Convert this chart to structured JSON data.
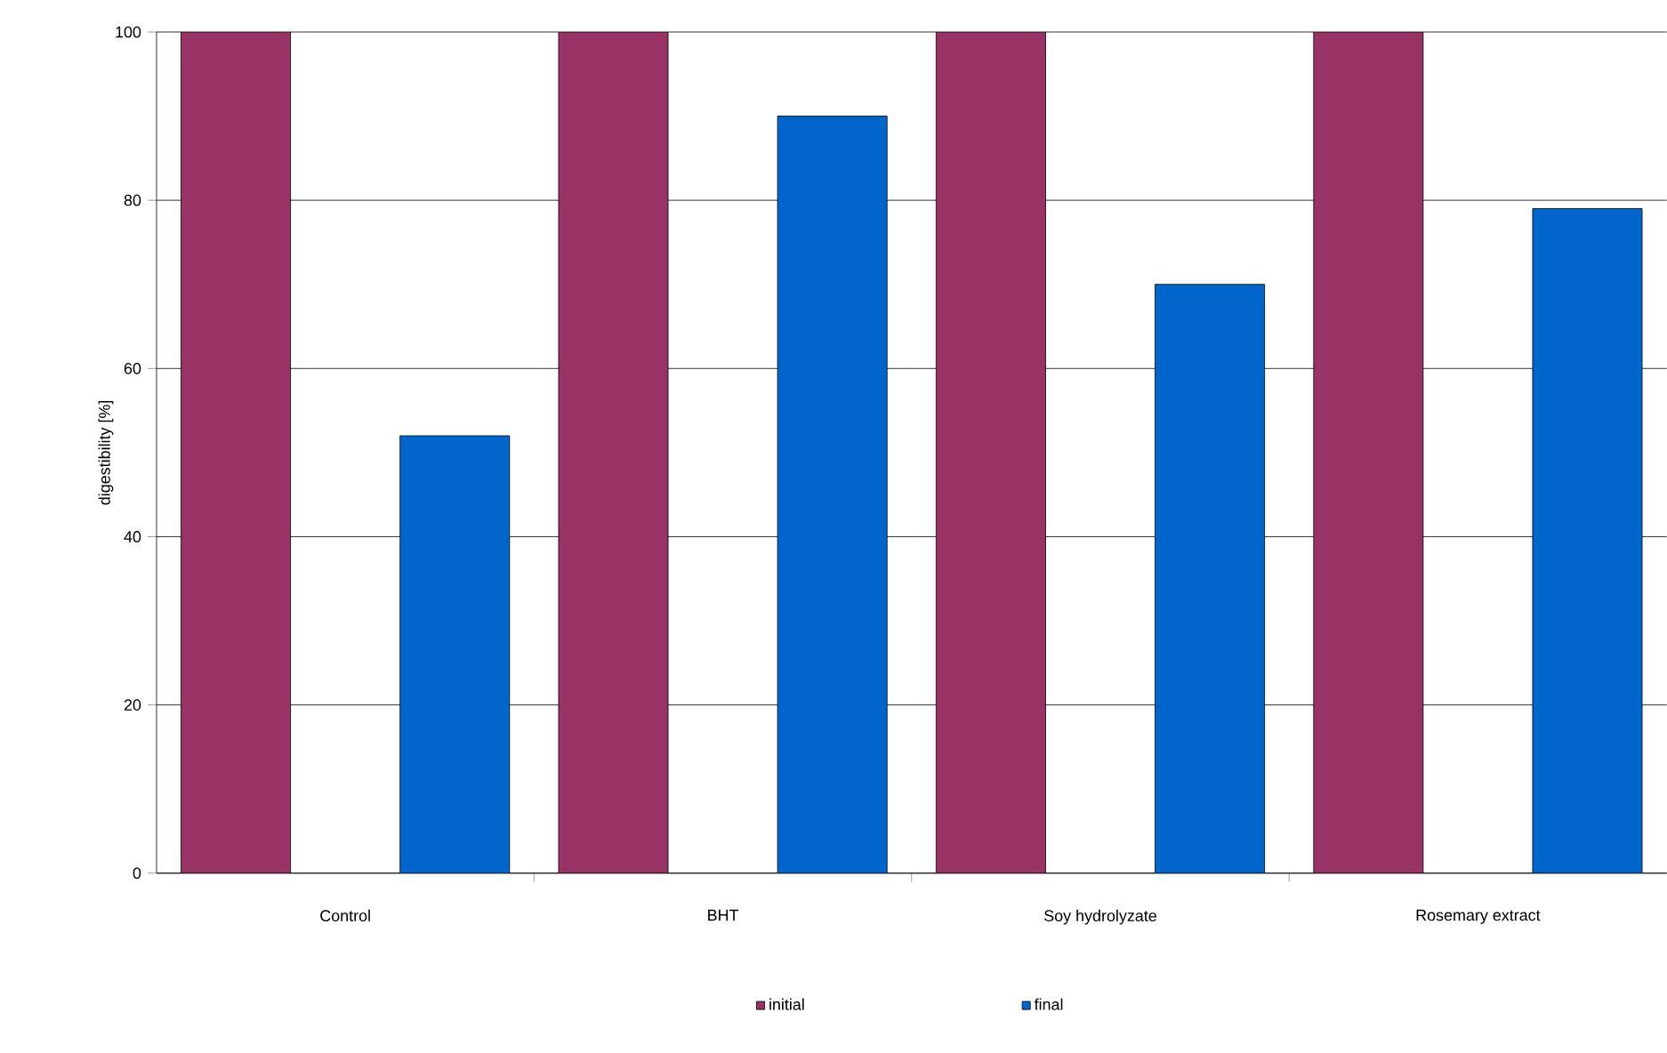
{
  "chart_data": {
    "type": "bar",
    "ylabel": "digestibility [%]",
    "categories": [
      "Control",
      "BHT",
      "Soy hydrolyzate",
      "Rosemary extract"
    ],
    "series": [
      {
        "name": "initial",
        "color": "#993366",
        "values": [
          100,
          100,
          100,
          100
        ]
      },
      {
        "name": "final",
        "color": "#0066cc",
        "values": [
          52,
          90,
          70,
          79
        ]
      }
    ],
    "ylim": [
      0,
      100
    ],
    "yticks": [
      0,
      20,
      40,
      60,
      80,
      100
    ],
    "grid": "y",
    "legend": "bottom"
  }
}
